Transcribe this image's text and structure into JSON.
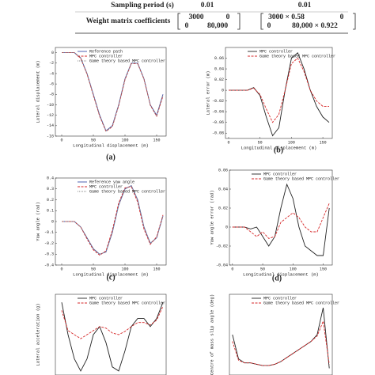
{
  "table": {
    "rows": [
      [
        "Sampling period (s)",
        "0.01",
        "0.01"
      ],
      [
        "Weight matrix coefficients",
        [
          "3000",
          "0",
          "0",
          "80,000"
        ],
        [
          "3000 × 0.58",
          "0",
          "0",
          "80,000 × 0.922"
        ]
      ]
    ]
  },
  "captions": [
    "(a)",
    "(b)",
    "(c)",
    "(d)"
  ],
  "chart_data": [
    {
      "type": "line",
      "xlabel": "Longitudinal displacement (m)",
      "ylabel": "Lateral displacement (m)",
      "x": [
        0,
        10,
        20,
        30,
        40,
        50,
        60,
        70,
        80,
        90,
        100,
        110,
        120,
        130,
        140,
        150,
        160
      ],
      "xlim": [
        -10,
        165
      ],
      "xticks": [
        0,
        50,
        100,
        150
      ],
      "ylim": [
        -16,
        1
      ],
      "yticks": [
        0,
        -2,
        -4,
        -6,
        -8,
        -10,
        -12,
        -14,
        -16
      ],
      "series": [
        {
          "name": "Reference path",
          "color": "#3b4fa8",
          "style": "solid",
          "values": [
            0,
            0,
            0,
            -1,
            -4,
            -8,
            -12,
            -15,
            -14,
            -10,
            -5,
            -2,
            -2,
            -5,
            -10,
            -12,
            -8
          ]
        },
        {
          "name": "MPC controller",
          "color": "#d62728",
          "style": "dashed",
          "values": [
            0,
            0,
            0,
            -1.1,
            -4.1,
            -8.2,
            -12.2,
            -15.1,
            -14.2,
            -10.2,
            -5.2,
            -2.1,
            -2.1,
            -5.1,
            -10.1,
            -12.2,
            -8.3
          ]
        },
        {
          "name": "Game theory based MPC controller",
          "color": "#888888",
          "style": "dotted",
          "values": [
            0,
            0,
            0,
            -1,
            -4.05,
            -8.1,
            -12.1,
            -15.05,
            -14.1,
            -10.1,
            -5.1,
            -2.05,
            -2.05,
            -5.05,
            -10.05,
            -12.1,
            -8.1
          ]
        }
      ]
    },
    {
      "type": "line",
      "xlabel": "Longitudinal displacement (m)",
      "ylabel": "Lateral error (m)",
      "x": [
        0,
        10,
        20,
        30,
        40,
        50,
        60,
        70,
        80,
        90,
        100,
        110,
        120,
        130,
        140,
        150,
        160
      ],
      "xlim": [
        -5,
        165
      ],
      "xticks": [
        0,
        50,
        100,
        150
      ],
      "ylim": [
        -0.09,
        0.08
      ],
      "yticks": [
        0.06,
        0.04,
        0.02,
        0,
        -0.02,
        -0.04,
        -0.06,
        -0.08
      ],
      "series": [
        {
          "name": "MPC controller",
          "color": "#222222",
          "style": "solid",
          "values": [
            0,
            0,
            0,
            0,
            0.005,
            -0.01,
            -0.05,
            -0.085,
            -0.07,
            0,
            0.06,
            0.07,
            0.04,
            0,
            -0.03,
            -0.05,
            -0.06
          ]
        },
        {
          "name": "Game theory based MPC controller",
          "color": "#d62728",
          "style": "dashed",
          "values": [
            0,
            0,
            0,
            0,
            0.004,
            -0.008,
            -0.035,
            -0.06,
            -0.045,
            0,
            0.05,
            0.06,
            0.035,
            0,
            -0.02,
            -0.03,
            -0.03
          ]
        }
      ]
    },
    {
      "type": "line",
      "xlabel": "Longitudinal displacement (m)",
      "ylabel": "Yaw angle (rad)",
      "x": [
        0,
        10,
        20,
        30,
        40,
        50,
        60,
        70,
        80,
        90,
        100,
        110,
        120,
        130,
        140,
        150,
        160
      ],
      "xlim": [
        -10,
        165
      ],
      "xticks": [
        0,
        50,
        100,
        150
      ],
      "ylim": [
        -0.4,
        0.4
      ],
      "yticks": [
        0.4,
        0.3,
        0.2,
        0.1,
        0,
        -0.1,
        -0.2,
        -0.3,
        -0.4
      ],
      "series": [
        {
          "name": "Reference yaw angle",
          "color": "#3b4fa8",
          "style": "solid",
          "values": [
            0,
            0,
            0,
            -0.05,
            -0.15,
            -0.25,
            -0.3,
            -0.28,
            -0.1,
            0.15,
            0.3,
            0.33,
            0.2,
            -0.05,
            -0.2,
            -0.15,
            0.05
          ]
        },
        {
          "name": "MPC controller",
          "color": "#d62728",
          "style": "dashed",
          "values": [
            0,
            0,
            0,
            -0.05,
            -0.16,
            -0.26,
            -0.31,
            -0.27,
            -0.08,
            0.17,
            0.31,
            0.32,
            0.18,
            -0.07,
            -0.21,
            -0.14,
            0.06
          ]
        },
        {
          "name": "Game theory based MPC controller",
          "color": "#888888",
          "style": "dotted",
          "values": [
            0,
            0,
            0,
            -0.05,
            -0.15,
            -0.25,
            -0.3,
            -0.28,
            -0.1,
            0.15,
            0.3,
            0.33,
            0.2,
            -0.05,
            -0.2,
            -0.15,
            0.05
          ]
        }
      ]
    },
    {
      "type": "line",
      "xlabel": "Longitudinal displacement (m)",
      "ylabel": "Yaw angle error (rad)",
      "x": [
        0,
        10,
        20,
        30,
        40,
        50,
        60,
        70,
        80,
        90,
        100,
        110,
        120,
        130,
        140,
        150,
        160
      ],
      "xlim": [
        -5,
        165
      ],
      "xticks": [
        0,
        50,
        100,
        150
      ],
      "ylim": [
        -0.04,
        0.06
      ],
      "yticks": [
        0.06,
        0.04,
        0.02,
        0,
        -0.02,
        -0.04
      ],
      "series": [
        {
          "name": "MPC controller",
          "color": "#222222",
          "style": "solid",
          "values": [
            0,
            0,
            0,
            -0.002,
            0,
            -0.01,
            -0.02,
            -0.01,
            0.02,
            0.045,
            0.03,
            0,
            -0.02,
            -0.025,
            -0.03,
            -0.03,
            0.02
          ]
        },
        {
          "name": "Game theory based MPC controller",
          "color": "#d62728",
          "style": "dashed",
          "values": [
            0,
            0,
            0,
            -0.005,
            -0.01,
            -0.005,
            -0.012,
            -0.01,
            0.005,
            0.01,
            0.015,
            0.01,
            0,
            -0.005,
            -0.005,
            0.01,
            0.025
          ]
        }
      ]
    },
    {
      "type": "line",
      "ylabel": "Lateral acceleration (g)",
      "x": [
        0,
        10,
        20,
        30,
        40,
        50,
        60,
        70,
        80,
        90,
        100,
        110,
        120,
        130,
        140,
        150,
        160
      ],
      "xlim": [
        -10,
        165
      ],
      "ylim": [
        -0.6,
        0.4
      ],
      "series": [
        {
          "name": "MPC controller",
          "color": "#222222",
          "style": "solid",
          "values": [
            0.3,
            -0.1,
            -0.4,
            -0.55,
            -0.4,
            -0.1,
            0,
            -0.2,
            -0.5,
            -0.55,
            -0.3,
            0,
            0.1,
            0.1,
            0,
            0.1,
            0.3
          ]
        },
        {
          "name": "Game theory based MPC controller",
          "color": "#d62728",
          "style": "dashed",
          "values": [
            0.2,
            -0.05,
            -0.1,
            -0.15,
            -0.1,
            -0.05,
            0,
            -0.02,
            -0.08,
            -0.1,
            -0.06,
            0,
            0.05,
            0.05,
            0.02,
            0.08,
            0.25
          ]
        }
      ]
    },
    {
      "type": "line",
      "ylabel": "Centre of mass slip angle (deg)",
      "x": [
        0,
        10,
        20,
        30,
        40,
        50,
        60,
        70,
        80,
        90,
        100,
        110,
        120,
        130,
        140,
        150,
        160
      ],
      "xlim": [
        -5,
        165
      ],
      "ylim": [
        -1,
        5
      ],
      "series": [
        {
          "name": "MPC controller",
          "color": "#222222",
          "style": "solid",
          "values": [
            2,
            0.2,
            -0.1,
            -0.1,
            -0.2,
            -0.3,
            -0.3,
            -0.2,
            0,
            0.3,
            0.6,
            0.9,
            1.2,
            1.5,
            2,
            4,
            -0.5
          ]
        },
        {
          "name": "Game theory based MPC controller",
          "color": "#d62728",
          "style": "dashed",
          "values": [
            1.5,
            0.1,
            -0.1,
            -0.1,
            -0.2,
            -0.3,
            -0.3,
            -0.2,
            0,
            0.3,
            0.6,
            0.9,
            1.2,
            1.5,
            1.9,
            3,
            -0.2
          ]
        }
      ]
    }
  ]
}
